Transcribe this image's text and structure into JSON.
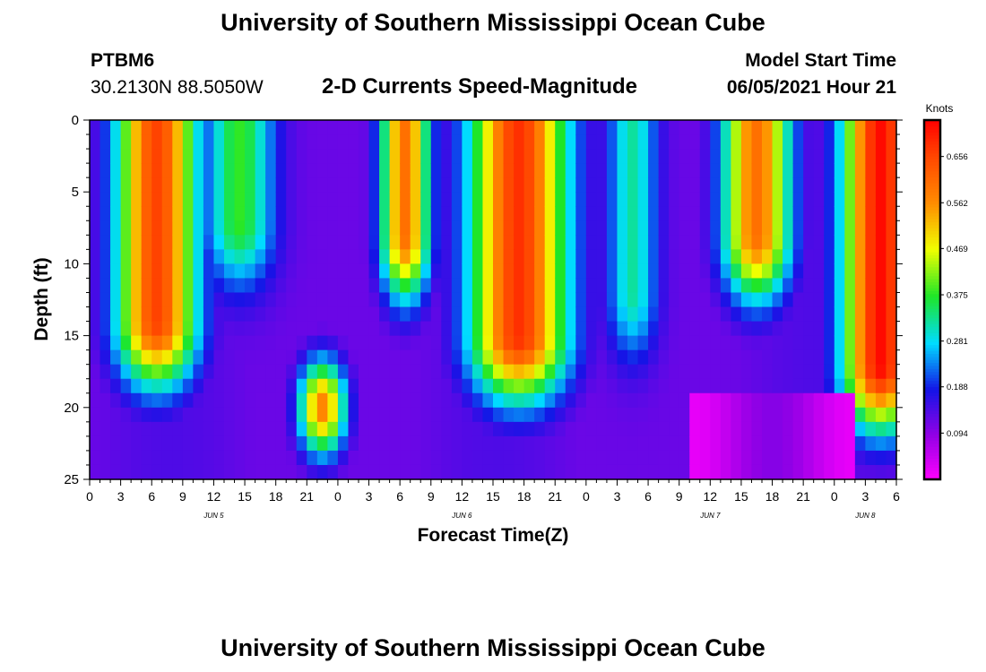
{
  "header": {
    "title": "University of Southern Mississippi Ocean Cube",
    "station_id": "PTBM6",
    "station_coords": "30.2130N  88.5050W",
    "chart_subtitle": "2-D Currents Speed-Magnitude",
    "start_time_label": "Model Start Time",
    "start_time_value": "06/05/2021 Hour 21"
  },
  "footer": {
    "title": "University of Southern Mississippi Ocean Cube"
  },
  "chart_data": {
    "type": "heatmap",
    "title": "2-D Currents Speed-Magnitude",
    "xlabel": "Forecast Time(Z)",
    "ylabel": "Depth (ft)",
    "x_tick_labels": [
      "0",
      "3",
      "6",
      "9",
      "12",
      "15",
      "18",
      "21",
      "0",
      "3",
      "6",
      "9",
      "12",
      "15",
      "18",
      "21",
      "0",
      "3",
      "6",
      "9",
      "12",
      "15",
      "18",
      "21",
      "0",
      "3",
      "6"
    ],
    "x_day_labels": [
      {
        "label": "JUN 5",
        "x_hour": 12
      },
      {
        "label": "JUN 6",
        "x_hour": 36
      },
      {
        "label": "JUN 7",
        "x_hour": 60
      },
      {
        "label": "JUN 8",
        "x_hour": 75
      }
    ],
    "x_range_hours": [
      0,
      78
    ],
    "y_ticks": [
      0,
      5,
      10,
      15,
      20,
      25
    ],
    "ylim": [
      0,
      25
    ],
    "y_inverted": true,
    "colorbar": {
      "label": "Knots",
      "ticks": [
        "0.656",
        "0.562",
        "0.469",
        "0.375",
        "0.281",
        "0.188",
        "0.094"
      ],
      "tick_values": [
        0.656,
        0.562,
        0.469,
        0.375,
        0.281,
        0.188,
        0.094
      ],
      "range": [
        0.0,
        0.73
      ]
    },
    "value_unit": "Knots",
    "features": [
      {
        "center_hour": 6.5,
        "center_depth": 10,
        "peak_knots": 0.62
      },
      {
        "center_hour": 22.5,
        "center_depth": 20,
        "peak_knots": 0.58
      },
      {
        "center_hour": 30.5,
        "center_depth": 3,
        "peak_knots": 0.57
      },
      {
        "center_hour": 41.5,
        "center_depth": 8,
        "peak_knots": 0.66
      },
      {
        "center_hour": 64.5,
        "center_depth": 4,
        "peak_knots": 0.58
      },
      {
        "center_hour": 76,
        "center_depth": 6,
        "peak_knots": 0.7
      }
    ]
  }
}
